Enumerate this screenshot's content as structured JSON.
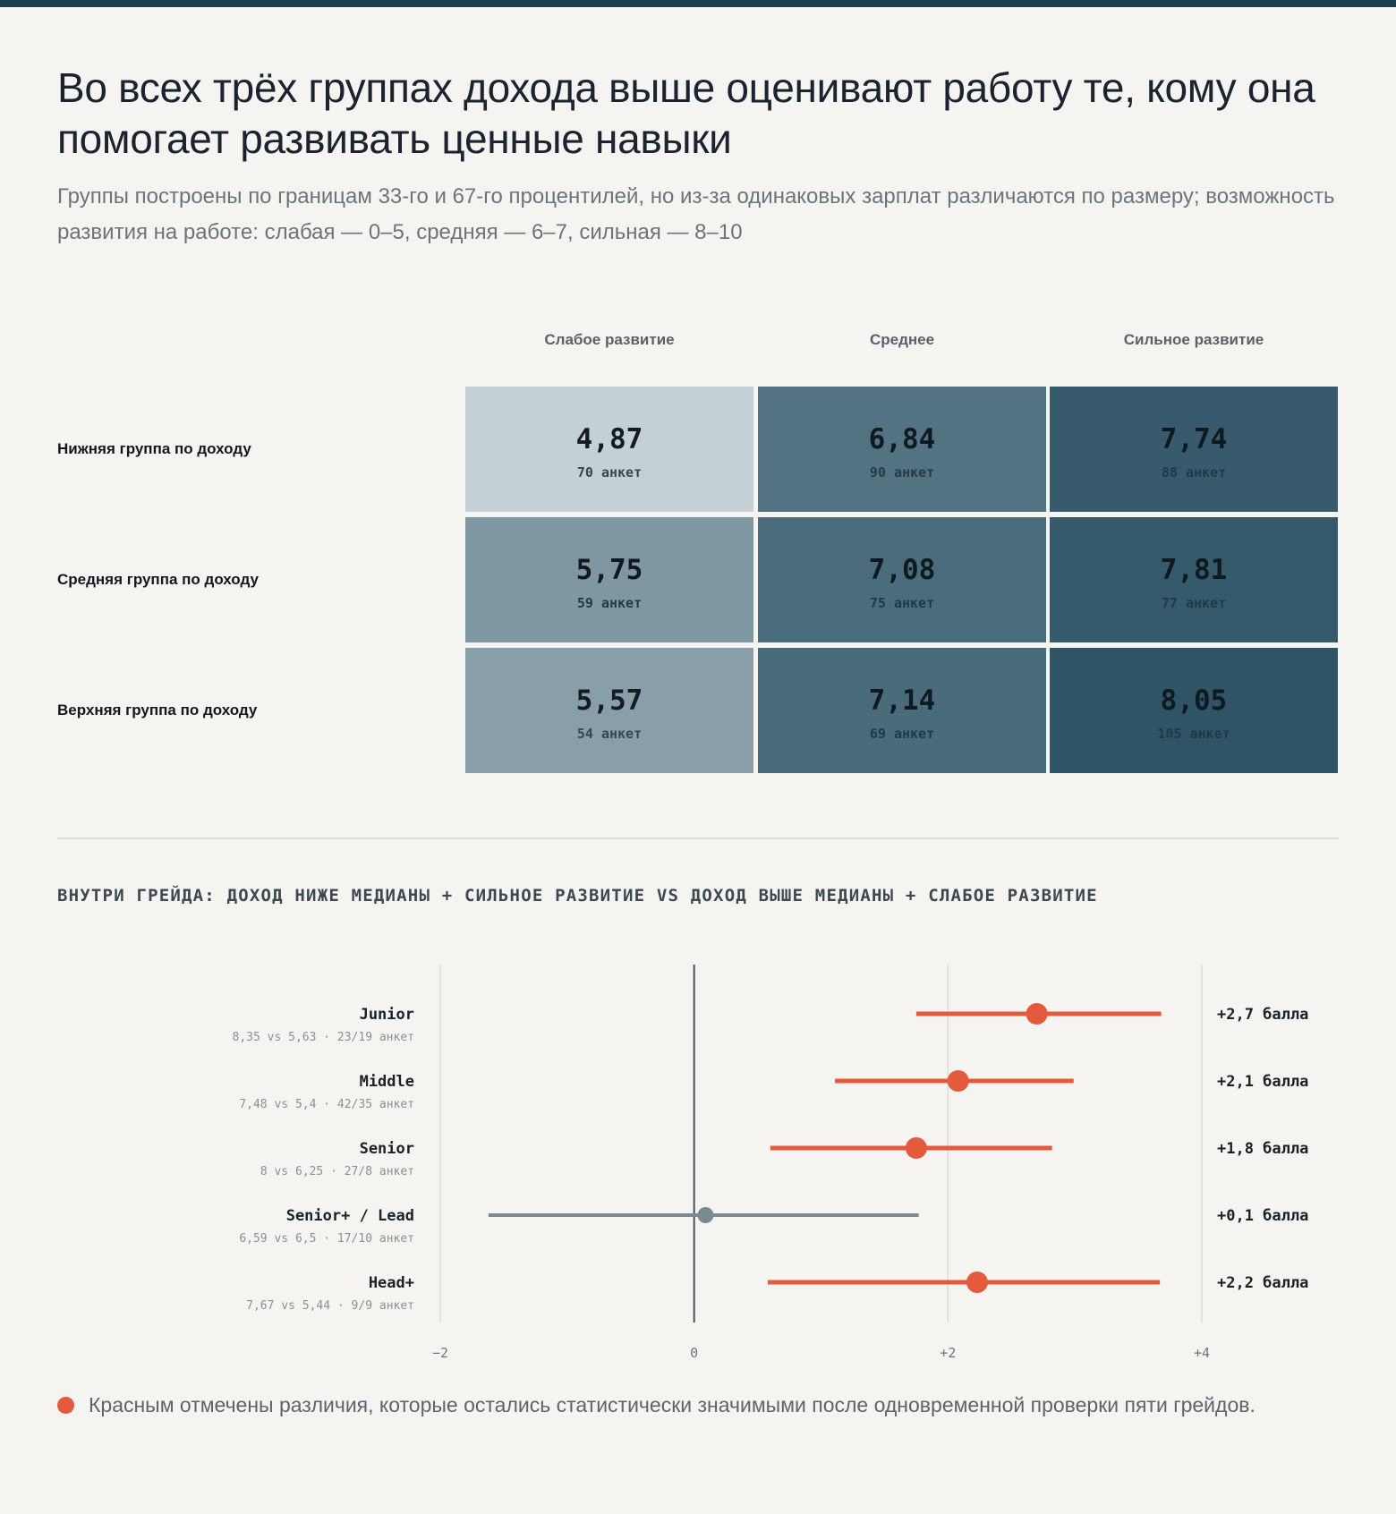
{
  "header": {
    "title": "Во всех трёх группах дохода выше оценивают работу те, кому она помогает развивать ценные навыки",
    "subtitle": "Группы построены по границам 33-го и 67-го процентилей, но из-за одинаковых зарплат различаются по размеру; возможность развития на работе: слабая — 0–5, средняя — 6–7, сильная — 8–10"
  },
  "chart_data": [
    {
      "type": "heatmap",
      "columns": [
        "Слабое развитие",
        "Среднее",
        "Сильное развитие"
      ],
      "rows": [
        "Нижняя группа по доходу",
        "Средняя группа по доходу",
        "Верхняя группа по доходу"
      ],
      "values": [
        [
          {
            "label": "4,87",
            "value": 4.87,
            "n": "70 анкет"
          },
          {
            "label": "6,84",
            "value": 6.84,
            "n": "90 анкет"
          },
          {
            "label": "7,74",
            "value": 7.74,
            "n": "88 анкет"
          }
        ],
        [
          {
            "label": "5,75",
            "value": 5.75,
            "n": "59 анкет"
          },
          {
            "label": "7,08",
            "value": 7.08,
            "n": "75 анкет"
          },
          {
            "label": "7,81",
            "value": 7.81,
            "n": "77 анкет"
          }
        ],
        [
          {
            "label": "5,57",
            "value": 5.57,
            "n": "54 анкет"
          },
          {
            "label": "7,14",
            "value": 7.14,
            "n": "69 анкет"
          },
          {
            "label": "8,05",
            "value": 8.05,
            "n": "105 анкет"
          }
        ]
      ],
      "colors": {
        "low": "#c4d0d6",
        "high": "#2e5466"
      }
    },
    {
      "type": "scatter",
      "subtype": "forest",
      "title": "ВНУТРИ ГРЕЙДА: ДОХОД НИЖЕ МЕДИАНЫ + СИЛЬНОЕ РАЗВИТИЕ VS ДОХОД ВЫШЕ МЕДИАНЫ + СЛАБОЕ РАЗВИТИЕ",
      "xlim": [
        -2,
        4
      ],
      "xticks": [
        {
          "value": -2,
          "label": "−2"
        },
        {
          "value": 0,
          "label": "0"
        },
        {
          "value": 2,
          "label": "+2"
        },
        {
          "value": 4,
          "label": "+4"
        }
      ],
      "rows": [
        {
          "name": "Junior",
          "detail": "8,35 vs 5,63 · 23/19 анкет",
          "estimate": 2.7,
          "ci": [
            1.75,
            3.68
          ],
          "label": "+2,7 балла",
          "significant": true
        },
        {
          "name": "Middle",
          "detail": "7,48 vs 5,4 · 42/35 анкет",
          "estimate": 2.08,
          "ci": [
            1.11,
            2.99
          ],
          "label": "+2,1 балла",
          "significant": true
        },
        {
          "name": "Senior",
          "detail": "8 vs 6,25 · 27/8 анкет",
          "estimate": 1.75,
          "ci": [
            0.6,
            2.82
          ],
          "label": "+1,8 балла",
          "significant": true
        },
        {
          "name": "Senior+ / Lead",
          "detail": "6,59 vs 6,5 · 17/10 анкет",
          "estimate": 0.09,
          "ci": [
            -1.62,
            1.77
          ],
          "label": "+0,1 балла",
          "significant": false
        },
        {
          "name": "Head+",
          "detail": "7,67 vs 5,44 · 9/9 анкет",
          "estimate": 2.23,
          "ci": [
            0.58,
            3.67
          ],
          "label": "+2,2 балла",
          "significant": true
        }
      ],
      "colors": {
        "significant": "#e45a3d",
        "not_significant": "#7a8a94",
        "zero_line": "#4a5258",
        "grid": "#dcdbd6"
      }
    }
  ],
  "footnote": "Красным отмечены различия, которые остались статистически значимыми после одновременной проверки пяти грейдов."
}
